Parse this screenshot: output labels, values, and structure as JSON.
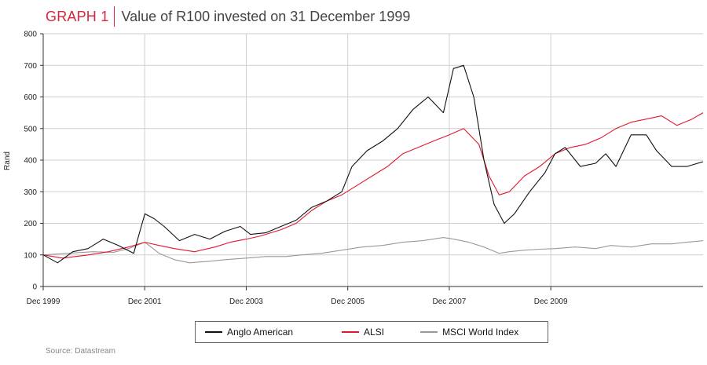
{
  "header": {
    "graph_label": "GRAPH 1",
    "title": "Value of R100 invested on 31 December 1999"
  },
  "source": "Source: Datastream",
  "chart_data": {
    "type": "line",
    "title": "Value of R100 invested on 31 December 1999",
    "ylabel": "Rand",
    "xlabel": "",
    "ylim": [
      0,
      800
    ],
    "y_ticks": [
      0,
      100,
      200,
      300,
      400,
      500,
      600,
      700,
      800
    ],
    "xlim": [
      1999.917,
      2012.917
    ],
    "x_ticks": [
      {
        "value": 1999.917,
        "label": "Dec 1999"
      },
      {
        "value": 2001.917,
        "label": "Dec 2001"
      },
      {
        "value": 2003.917,
        "label": "Dec 2003"
      },
      {
        "value": 2005.917,
        "label": "Dec 2005"
      },
      {
        "value": 2007.917,
        "label": "Dec 2007"
      },
      {
        "value": 2009.917,
        "label": "Dec 2009"
      }
    ],
    "grid": true,
    "legend_position": "bottom",
    "series": [
      {
        "name": "Anglo American",
        "color": "#111111",
        "x": [
          1999.92,
          2000.2,
          2000.5,
          2000.8,
          2001.1,
          2001.4,
          2001.7,
          2001.92,
          2002.1,
          2002.3,
          2002.6,
          2002.9,
          2003.2,
          2003.5,
          2003.8,
          2004.0,
          2004.3,
          2004.6,
          2004.9,
          2005.2,
          2005.5,
          2005.8,
          2006.0,
          2006.3,
          2006.6,
          2006.9,
          2007.2,
          2007.5,
          2007.8,
          2008.0,
          2008.2,
          2008.4,
          2008.6,
          2008.8,
          2009.0,
          2009.2,
          2009.5,
          2009.8,
          2010.0,
          2010.2,
          2010.5,
          2010.8,
          2011.0,
          2011.2,
          2011.5,
          2011.8,
          2012.0,
          2012.3,
          2012.6,
          2012.917
        ],
        "y": [
          100,
          75,
          110,
          120,
          150,
          130,
          105,
          230,
          215,
          190,
          145,
          165,
          150,
          175,
          190,
          165,
          170,
          190,
          210,
          250,
          270,
          300,
          380,
          430,
          460,
          500,
          560,
          600,
          550,
          690,
          700,
          600,
          400,
          260,
          200,
          230,
          300,
          360,
          420,
          440,
          380,
          390,
          420,
          380,
          480,
          480,
          430,
          380,
          380,
          395
        ]
      },
      {
        "name": "ALSI",
        "color": "#e0182d",
        "x": [
          1999.92,
          2000.3,
          2000.8,
          2001.2,
          2001.6,
          2001.92,
          2002.2,
          2002.5,
          2002.9,
          2003.3,
          2003.6,
          2003.92,
          2004.2,
          2004.6,
          2004.9,
          2005.2,
          2005.5,
          2005.8,
          2006.1,
          2006.4,
          2006.7,
          2007.0,
          2007.3,
          2007.6,
          2007.92,
          2008.2,
          2008.5,
          2008.7,
          2008.9,
          2009.1,
          2009.4,
          2009.7,
          2010.0,
          2010.3,
          2010.6,
          2010.9,
          2011.2,
          2011.5,
          2011.8,
          2012.1,
          2012.4,
          2012.7,
          2012.917
        ],
        "y": [
          100,
          90,
          100,
          110,
          125,
          140,
          130,
          120,
          110,
          125,
          140,
          150,
          160,
          180,
          200,
          240,
          270,
          290,
          320,
          350,
          380,
          420,
          440,
          460,
          480,
          500,
          450,
          350,
          290,
          300,
          350,
          380,
          420,
          440,
          450,
          470,
          500,
          520,
          530,
          540,
          510,
          530,
          550
        ]
      },
      {
        "name": "MSCI World Index",
        "color": "#999999",
        "x": [
          1999.92,
          2000.4,
          2000.9,
          2001.3,
          2001.6,
          2001.92,
          2002.2,
          2002.5,
          2002.8,
          2003.2,
          2003.5,
          2003.92,
          2004.3,
          2004.7,
          2005.0,
          2005.4,
          2005.8,
          2006.2,
          2006.6,
          2007.0,
          2007.4,
          2007.8,
          2008.0,
          2008.3,
          2008.6,
          2008.9,
          2009.1,
          2009.4,
          2009.7,
          2010.0,
          2010.4,
          2010.8,
          2011.1,
          2011.5,
          2011.9,
          2012.3,
          2012.6,
          2012.917
        ],
        "y": [
          100,
          105,
          110,
          108,
          120,
          140,
          105,
          85,
          75,
          80,
          85,
          90,
          95,
          95,
          100,
          105,
          115,
          125,
          130,
          140,
          145,
          155,
          150,
          140,
          125,
          105,
          110,
          115,
          118,
          120,
          125,
          120,
          130,
          125,
          135,
          135,
          140,
          145
        ]
      }
    ]
  }
}
